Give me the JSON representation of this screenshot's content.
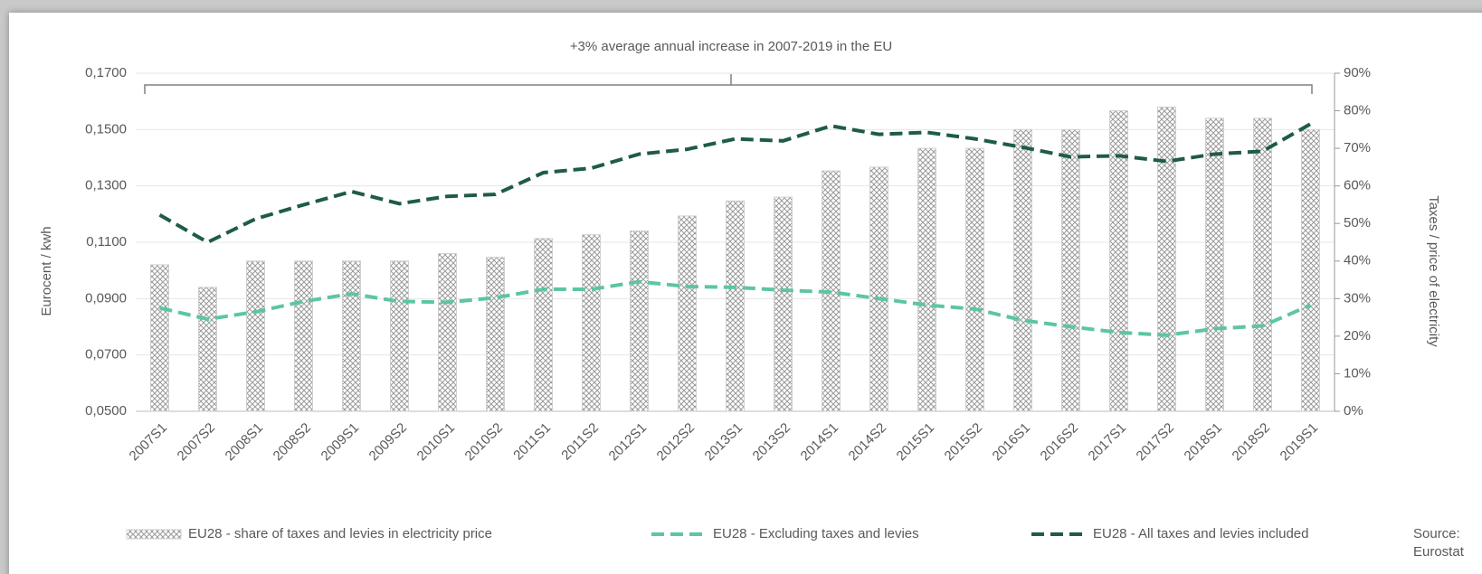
{
  "chart_data": {
    "type": "combo",
    "annotation": "+3% average annual increase in 2007-2019 in the EU",
    "ylabel": "Eurocent / kwh",
    "y2label": "Taxes / price of electricity",
    "source": [
      "Source:",
      "Eurostat"
    ],
    "categories": [
      "2007S1",
      "2007S2",
      "2008S1",
      "2008S2",
      "2009S1",
      "2009S2",
      "2010S1",
      "2010S2",
      "2011S1",
      "2011S2",
      "2012S1",
      "2012S2",
      "2013S1",
      "2013S2",
      "2014S1",
      "2014S2",
      "2015S1",
      "2015S2",
      "2016S1",
      "2016S2",
      "2017S1",
      "2017S2",
      "2018S1",
      "2018S2",
      "2019S1"
    ],
    "series": [
      {
        "name": "EU28 - share of taxes and levies in electricity price",
        "type": "bar",
        "axis": "y2",
        "color": "#b5b5b5",
        "values": [
          39,
          33,
          40,
          40,
          40,
          40,
          42,
          41,
          46,
          47,
          48,
          52,
          56,
          57,
          64,
          65,
          70,
          70,
          75,
          75,
          80,
          81,
          78,
          78,
          75
        ]
      },
      {
        "name": "EU28 - Excluding taxes and levies",
        "type": "line",
        "dash": true,
        "color": "#5cc6a0",
        "values": [
          0.0867,
          0.0827,
          0.0853,
          0.089,
          0.0917,
          0.089,
          0.0887,
          0.0903,
          0.0933,
          0.0933,
          0.096,
          0.0943,
          0.094,
          0.093,
          0.0923,
          0.09,
          0.0877,
          0.0863,
          0.0823,
          0.08,
          0.078,
          0.077,
          0.0793,
          0.0803,
          0.0877
        ]
      },
      {
        "name": "EU28 - All taxes and levies included",
        "type": "line",
        "dash": true,
        "color": "#1f5c45",
        "values": [
          0.1197,
          0.11,
          0.1183,
          0.1233,
          0.128,
          0.1237,
          0.1263,
          0.127,
          0.1347,
          0.1363,
          0.1413,
          0.143,
          0.1467,
          0.146,
          0.1513,
          0.1483,
          0.149,
          0.1467,
          0.1437,
          0.1403,
          0.1407,
          0.1387,
          0.1413,
          0.1423,
          0.152
        ]
      }
    ],
    "ylim": [
      0.05,
      0.17
    ],
    "yticks": [
      {
        "value": 0.05,
        "label": "0,0500"
      },
      {
        "value": 0.07,
        "label": "0,0700"
      },
      {
        "value": 0.09,
        "label": "0,0900"
      },
      {
        "value": 0.11,
        "label": "0,1100"
      },
      {
        "value": 0.13,
        "label": "0,1300"
      },
      {
        "value": 0.15,
        "label": "0,1500"
      },
      {
        "value": 0.17,
        "label": "0,1700"
      }
    ],
    "y2lim": [
      0,
      90
    ],
    "y2ticks": [
      {
        "value": 0,
        "label": "0%"
      },
      {
        "value": 10,
        "label": "10%"
      },
      {
        "value": 20,
        "label": "20%"
      },
      {
        "value": 30,
        "label": "30%"
      },
      {
        "value": 40,
        "label": "40%"
      },
      {
        "value": 50,
        "label": "50%"
      },
      {
        "value": 60,
        "label": "60%"
      },
      {
        "value": 70,
        "label": "70%"
      },
      {
        "value": 80,
        "label": "80%"
      },
      {
        "value": 90,
        "label": "90%"
      }
    ],
    "grid": true
  }
}
